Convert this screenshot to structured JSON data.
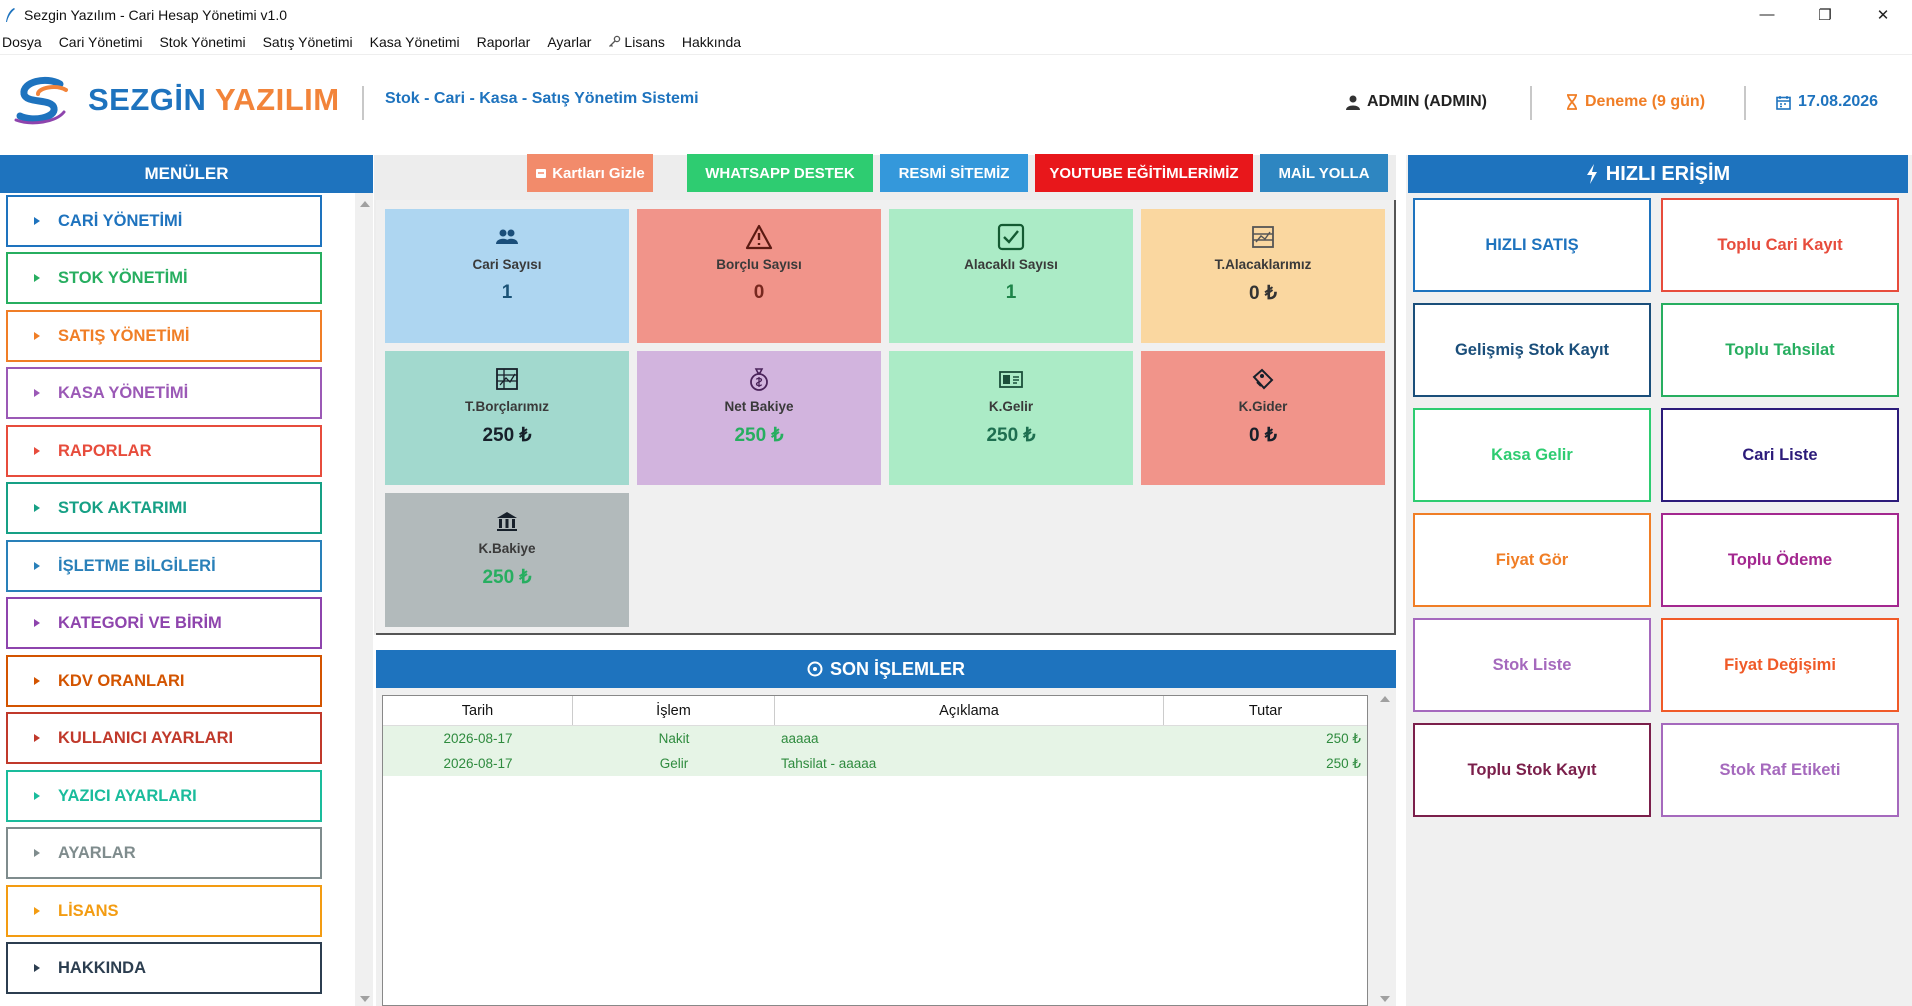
{
  "window": {
    "title": "Sezgin Yazılım - Cari Hesap Yönetimi v1.0",
    "minimize": "—",
    "maximize": "❐",
    "close": "✕"
  },
  "menubar": [
    "Dosya",
    "Cari Yönetimi",
    "Stok Yönetimi",
    "Satış Yönetimi",
    "Kasa Yönetimi",
    "Raporlar",
    "Ayarlar",
    "Lisans",
    "Hakkında"
  ],
  "header": {
    "brand_part1": "SEZGİN",
    "brand_part2": "YAZILIM",
    "subtitle": "Stok - Cari - Kasa - Satış Yönetim Sistemi",
    "user": "ADMIN (ADMIN)",
    "trial": "Deneme (9 gün)",
    "date": "17.08.2026"
  },
  "sidebar": {
    "title": "MENÜLER",
    "items": [
      {
        "label": "CARİ YÖNETİMİ",
        "color": "#1e73be"
      },
      {
        "label": "STOK YÖNETİMİ",
        "color": "#27ae60"
      },
      {
        "label": "SATIŞ YÖNETİMİ",
        "color": "#f07e26"
      },
      {
        "label": "KASA YÖNETİMİ",
        "color": "#9b59b6"
      },
      {
        "label": "RAPORLAR",
        "color": "#e74c3c"
      },
      {
        "label": "STOK AKTARIMI",
        "color": "#16a085"
      },
      {
        "label": "İŞLETME BİLGİLERİ",
        "color": "#2980b9"
      },
      {
        "label": "KATEGORİ VE BİRİM",
        "color": "#8e44ad"
      },
      {
        "label": "KDV ORANLARI",
        "color": "#d35400"
      },
      {
        "label": "KULLANICI AYARLARI",
        "color": "#c0392b"
      },
      {
        "label": "YAZICI AYARLARI",
        "color": "#1abc9c"
      },
      {
        "label": "AYARLAR",
        "color": "#7f8c8d"
      },
      {
        "label": "LİSANS",
        "color": "#f39c12"
      },
      {
        "label": "HAKKINDA",
        "color": "#2c3e50"
      }
    ]
  },
  "toolbar": {
    "hide_cards": "Kartları Gizle",
    "whatsapp": "WHATSAPP DESTEK",
    "website": "RESMİ SİTEMİZ",
    "youtube": "YOUTUBE EĞİTİMLERİMİZ",
    "mail": "MAİL YOLLA"
  },
  "cards": [
    {
      "label": "Cari Sayısı",
      "value": "1",
      "bg": "#aed6f1",
      "fg": "#1a5276",
      "icon": "users-icon"
    },
    {
      "label": "Borçlu Sayısı",
      "value": "0",
      "bg": "#f1948a",
      "fg": "#78281f",
      "icon": "warning-icon"
    },
    {
      "label": "Alacaklı Sayısı",
      "value": "1",
      "bg": "#abebc6",
      "fg": "#1e8449",
      "icon": "checkbox-icon"
    },
    {
      "label": "T.Alacaklarımız",
      "value": "0 ₺",
      "bg": "#fad7a0",
      "fg": "#333333",
      "icon": "chart-icon"
    },
    {
      "label": "T.Borçlarımız",
      "value": "250 ₺",
      "bg": "#a2d9ce",
      "fg": "#17202a",
      "icon": "ledger-icon"
    },
    {
      "label": "Net Bakiye",
      "value": "250 ₺",
      "bg": "#d2b4de",
      "fg": "#27ae60",
      "icon": "moneybag-icon"
    },
    {
      "label": "K.Gelir",
      "value": "250 ₺",
      "bg": "#abebc6",
      "fg": "#1e6f50",
      "icon": "cash-icon"
    },
    {
      "label": "K.Gider",
      "value": "0 ₺",
      "bg": "#f1948a",
      "fg": "#17202a",
      "icon": "tag-icon"
    },
    {
      "label": "K.Bakiye",
      "value": "250 ₺",
      "bg": "#b2babb",
      "fg": "#27ae60",
      "icon": "bank-icon"
    }
  ],
  "transactions": {
    "title": "SON İŞLEMLER",
    "columns": [
      "Tarih",
      "İşlem",
      "Açıklama",
      "Tutar"
    ],
    "rows": [
      [
        "2026-08-17",
        "Nakit",
        "aaaaa",
        "250 ₺"
      ],
      [
        "2026-08-17",
        "Gelir",
        "Tahsilat - aaaaa",
        "250 ₺"
      ]
    ]
  },
  "quick_access": {
    "title": "HIZLI ERİŞİM",
    "buttons": [
      {
        "label": "HIZLI SATIŞ",
        "color": "#1e73be"
      },
      {
        "label": "Toplu Cari Kayıt",
        "color": "#e74c3c"
      },
      {
        "label": "Gelişmiş Stok Kayıt",
        "color": "#1a4e7a"
      },
      {
        "label": "Toplu Tahsilat",
        "color": "#27ae60"
      },
      {
        "label": "Kasa Gelir",
        "color": "#2ecc71"
      },
      {
        "label": "Cari Liste",
        "color": "#2c1b7a"
      },
      {
        "label": "Fiyat Gör",
        "color": "#f07e26"
      },
      {
        "label": "Toplu Ödeme",
        "color": "#a3278f"
      },
      {
        "label": "Stok Liste",
        "color": "#a569bd"
      },
      {
        "label": "Fiyat Değişimi",
        "color": "#f05a28"
      },
      {
        "label": "Toplu Stok Kayıt",
        "color": "#7b1f4b"
      },
      {
        "label": "Stok Raf Etiketi",
        "color": "#a569bd"
      }
    ]
  }
}
